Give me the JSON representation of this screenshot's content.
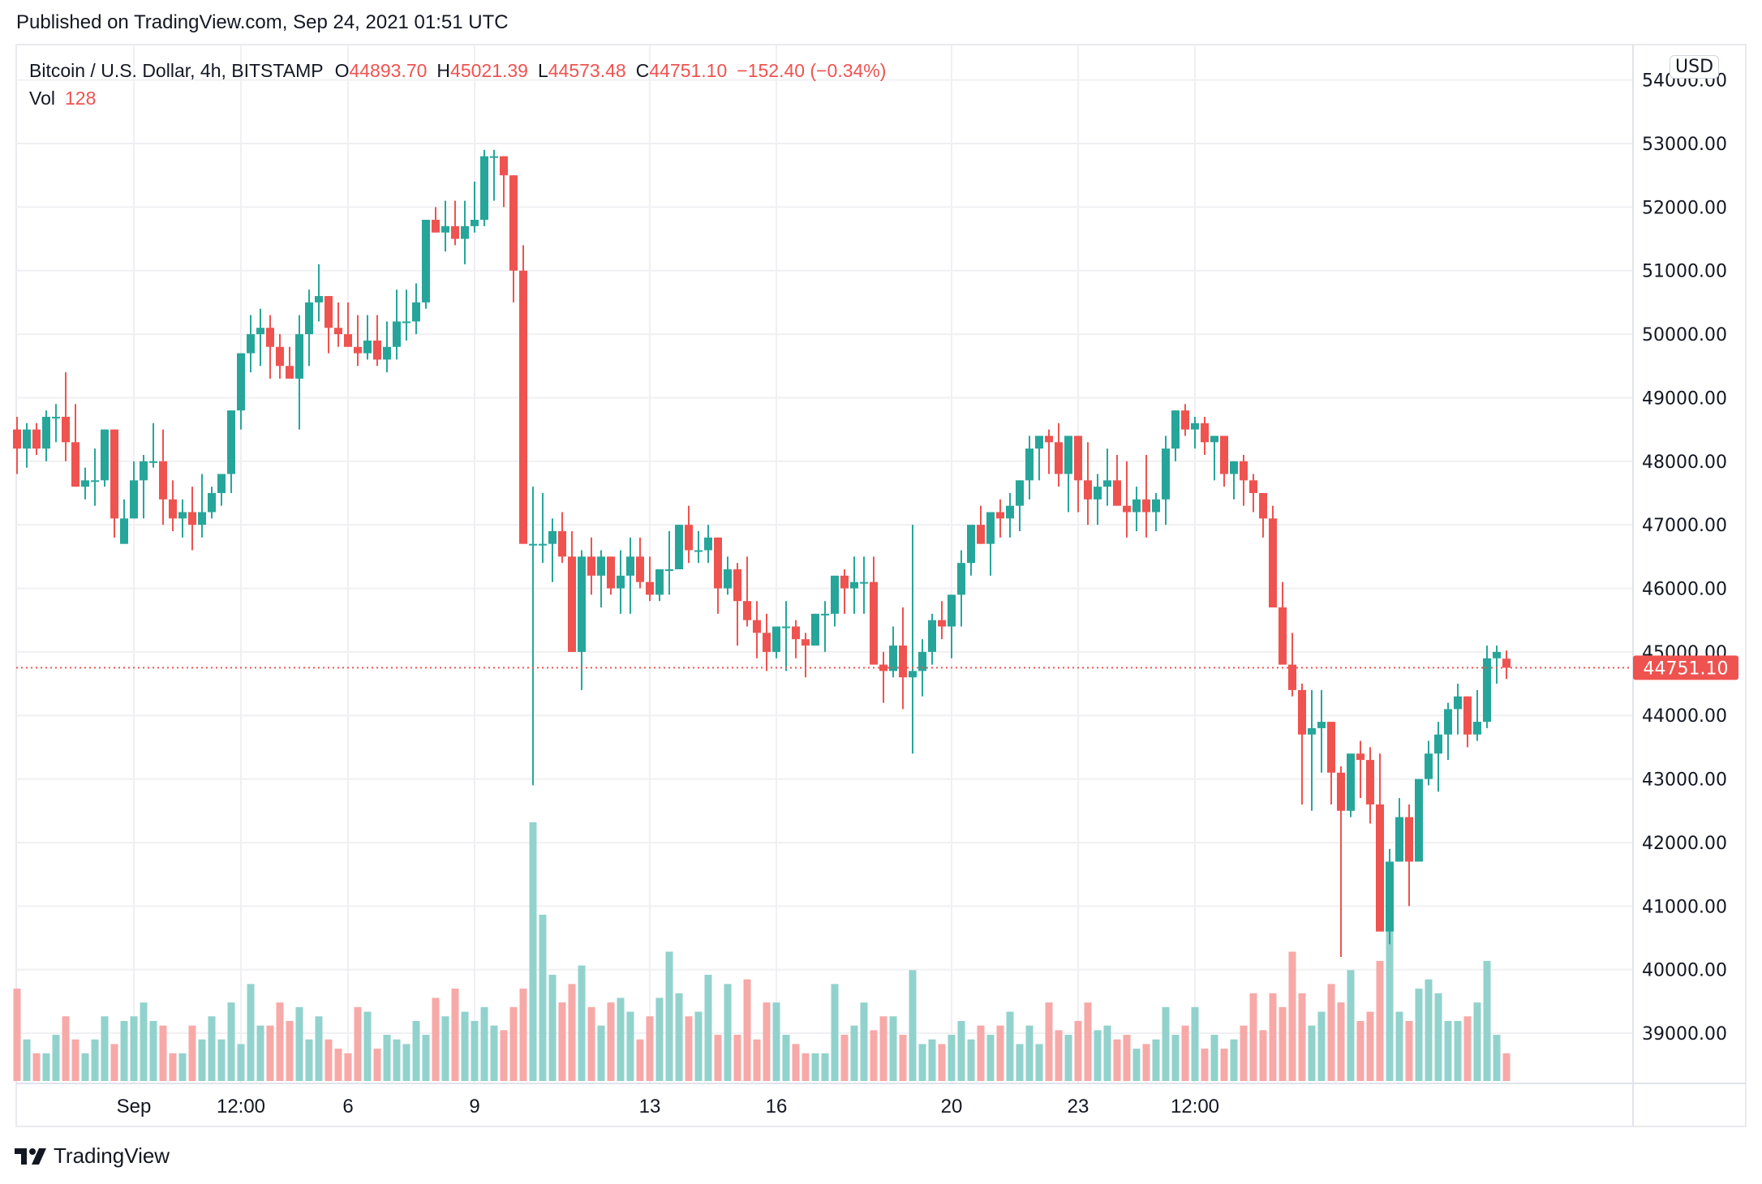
{
  "header": {
    "published": "Published on TradingView.com, Sep 24, 2021 01:51 UTC"
  },
  "legend": {
    "symbol": "Bitcoin / U.S. Dollar, 4h, BITSTAMP",
    "open_label": "O",
    "open": "44893.70",
    "high_label": "H",
    "high": "45021.39",
    "low_label": "L",
    "low": "44573.48",
    "close_label": "C",
    "close": "44751.10",
    "change": "−152.40 (−0.34%)",
    "vol_label": "Vol",
    "vol": "128"
  },
  "currency_badge": "USD",
  "last_price_label": "44751.10",
  "footer": {
    "brand": "TradingView"
  },
  "colors": {
    "up": "#26a69a",
    "down": "#ef5350",
    "up_vol": "#92d2cc",
    "down_vol": "#f7a9a7",
    "grid": "#f0f0f3"
  },
  "chart_data": {
    "type": "candlestick",
    "title": "Bitcoin / U.S. Dollar, 4h, BITSTAMP",
    "xlabel": "",
    "ylabel": "USD",
    "ylim": [
      38300,
      54300
    ],
    "y_ticks": [
      "54000.00",
      "53000.00",
      "52000.00",
      "51000.00",
      "50000.00",
      "49000.00",
      "48000.00",
      "47000.00",
      "46000.00",
      "45000.00",
      "44000.00",
      "43000.00",
      "42000.00",
      "41000.00",
      "40000.00",
      "39000.00"
    ],
    "x_ticks": [
      {
        "label": "Sep",
        "index": 12
      },
      {
        "label": "12:00",
        "index": 23
      },
      {
        "label": "6",
        "index": 34
      },
      {
        "label": "9",
        "index": 47
      },
      {
        "label": "13",
        "index": 65
      },
      {
        "label": "16",
        "index": 78
      },
      {
        "label": "20",
        "index": 96
      },
      {
        "label": "23",
        "index": 109
      },
      {
        "label": "12:00",
        "index": 121
      }
    ],
    "last_price": 44751.1,
    "grid": true,
    "candles_ohlcv": [
      [
        48500,
        48700,
        47800,
        48200,
        20
      ],
      [
        48200,
        48600,
        47900,
        48500,
        9
      ],
      [
        48500,
        48600,
        48100,
        48200,
        6
      ],
      [
        48200,
        48800,
        48000,
        48700,
        6
      ],
      [
        48700,
        48900,
        48300,
        48700,
        10
      ],
      [
        48700,
        49400,
        48000,
        48300,
        14
      ],
      [
        48300,
        48900,
        48000,
        47600,
        9
      ],
      [
        47600,
        47900,
        47400,
        47700,
        6
      ],
      [
        47700,
        48200,
        47300,
        47700,
        9
      ],
      [
        47700,
        48300,
        47600,
        48500,
        14
      ],
      [
        48500,
        48500,
        46800,
        47100,
        8
      ],
      [
        46700,
        47400,
        46800,
        47100,
        13
      ],
      [
        47100,
        48000,
        47200,
        47700,
        14
      ],
      [
        47700,
        48100,
        47100,
        48000,
        17
      ],
      [
        48000,
        48600,
        47900,
        48000,
        13
      ],
      [
        48000,
        48500,
        47000,
        47400,
        12
      ],
      [
        47400,
        47700,
        46900,
        47100,
        6
      ],
      [
        47100,
        47400,
        46800,
        47200,
        6
      ],
      [
        47200,
        47600,
        46600,
        47000,
        12
      ],
      [
        47000,
        47800,
        46800,
        47200,
        9
      ],
      [
        47200,
        47600,
        47100,
        47500,
        14
      ],
      [
        47500,
        47800,
        47300,
        47800,
        9
      ],
      [
        47800,
        48800,
        47500,
        48800,
        17
      ],
      [
        48800,
        49500,
        48500,
        49700,
        8
      ],
      [
        49700,
        50300,
        49400,
        50000,
        21
      ],
      [
        50000,
        50400,
        49500,
        50100,
        12
      ],
      [
        50100,
        50300,
        49300,
        49800,
        12
      ],
      [
        49800,
        50000,
        49300,
        49500,
        17
      ],
      [
        49500,
        49800,
        49300,
        49300,
        13
      ],
      [
        49300,
        50300,
        48500,
        50000,
        16
      ],
      [
        50000,
        50700,
        49500,
        50500,
        9
      ],
      [
        50500,
        51100,
        50200,
        50600,
        14
      ],
      [
        50600,
        50500,
        49700,
        50100,
        9
      ],
      [
        50100,
        50500,
        49800,
        50000,
        7
      ],
      [
        50000,
        50500,
        49800,
        49800,
        6
      ],
      [
        49800,
        50300,
        49500,
        49700,
        16
      ],
      [
        49700,
        50300,
        49600,
        49900,
        15
      ],
      [
        49900,
        50300,
        49500,
        49600,
        7
      ],
      [
        49600,
        50200,
        49400,
        49800,
        10
      ],
      [
        49800,
        50700,
        49600,
        50200,
        9
      ],
      [
        50200,
        50700,
        49900,
        50200,
        8
      ],
      [
        50200,
        50800,
        50000,
        50500,
        13
      ],
      [
        50500,
        51300,
        50400,
        51800,
        10
      ],
      [
        51800,
        52000,
        51600,
        51600,
        18
      ],
      [
        51600,
        52100,
        51300,
        51700,
        14
      ],
      [
        51700,
        52100,
        51400,
        51500,
        20
      ],
      [
        51500,
        52100,
        51100,
        51700,
        15
      ],
      [
        51700,
        52400,
        51600,
        51800,
        13
      ],
      [
        51800,
        52900,
        51700,
        52800,
        16
      ],
      [
        52800,
        52900,
        52100,
        52800,
        12
      ],
      [
        52800,
        52800,
        52000,
        52500,
        11
      ],
      [
        52500,
        52400,
        50500,
        51000,
        16
      ],
      [
        51000,
        51400,
        46800,
        46700,
        20
      ],
      [
        46700,
        47600,
        42900,
        46700,
        56
      ],
      [
        46700,
        47500,
        46400,
        46700,
        36
      ],
      [
        46700,
        47100,
        46100,
        46900,
        23
      ],
      [
        46900,
        47200,
        46400,
        46500,
        17
      ],
      [
        46500,
        46900,
        45200,
        45000,
        21
      ],
      [
        45000,
        46600,
        44400,
        46500,
        25
      ],
      [
        46500,
        46800,
        45900,
        46200,
        16
      ],
      [
        46200,
        46600,
        45700,
        46500,
        12
      ],
      [
        46500,
        46500,
        45900,
        46000,
        17
      ],
      [
        46000,
        46600,
        45600,
        46200,
        18
      ],
      [
        46200,
        46800,
        45600,
        46500,
        15
      ],
      [
        46500,
        46800,
        46000,
        46100,
        9
      ],
      [
        46100,
        46500,
        45800,
        45900,
        14
      ],
      [
        45900,
        46300,
        45800,
        46300,
        18
      ],
      [
        46300,
        46900,
        45900,
        46300,
        28
      ],
      [
        46300,
        46900,
        46600,
        47000,
        19
      ],
      [
        47000,
        47300,
        46400,
        46600,
        14
      ],
      [
        46600,
        46900,
        46400,
        46600,
        15
      ],
      [
        46600,
        47000,
        46400,
        46800,
        23
      ],
      [
        46800,
        46700,
        45600,
        46000,
        10
      ],
      [
        46000,
        46500,
        45900,
        46300,
        21
      ],
      [
        46300,
        46400,
        45100,
        45800,
        10
      ],
      [
        45800,
        46500,
        45400,
        45500,
        22
      ],
      [
        45500,
        45800,
        44900,
        45300,
        9
      ],
      [
        45300,
        45600,
        44700,
        45000,
        17
      ],
      [
        45000,
        45300,
        44900,
        45400,
        17
      ],
      [
        45400,
        45800,
        44700,
        45400,
        10
      ],
      [
        45400,
        45500,
        44900,
        45200,
        8
      ],
      [
        45200,
        45300,
        44600,
        45100,
        6
      ],
      [
        45100,
        45600,
        45300,
        45600,
        6
      ],
      [
        45600,
        45800,
        45000,
        45600,
        6
      ],
      [
        45600,
        46100,
        45400,
        46200,
        21
      ],
      [
        46200,
        46300,
        45600,
        46000,
        10
      ],
      [
        46000,
        46500,
        45600,
        46100,
        12
      ],
      [
        46100,
        46500,
        45600,
        46100,
        17
      ],
      [
        46100,
        46500,
        44900,
        44800,
        11
      ],
      [
        44800,
        45000,
        44200,
        44700,
        14
      ],
      [
        44700,
        45400,
        44600,
        45100,
        14
      ],
      [
        45100,
        45700,
        44100,
        44600,
        10
      ],
      [
        44600,
        47000,
        43400,
        44700,
        24
      ],
      [
        44700,
        45200,
        44300,
        45000,
        8
      ],
      [
        45000,
        45600,
        44800,
        45500,
        9
      ],
      [
        45500,
        45800,
        45200,
        45400,
        8
      ],
      [
        45400,
        45900,
        44900,
        45900,
        10
      ],
      [
        45900,
        46600,
        45400,
        46400,
        13
      ],
      [
        46400,
        46700,
        46200,
        47000,
        9
      ],
      [
        47000,
        47300,
        46700,
        46700,
        12
      ],
      [
        46700,
        47200,
        46200,
        47200,
        10
      ],
      [
        47200,
        47400,
        46800,
        47100,
        12
      ],
      [
        47100,
        47500,
        46800,
        47300,
        15
      ],
      [
        47300,
        47700,
        46900,
        47700,
        8
      ],
      [
        47700,
        48400,
        47400,
        48200,
        12
      ],
      [
        48200,
        48400,
        47700,
        48400,
        8
      ],
      [
        48400,
        48500,
        47800,
        48300,
        17
      ],
      [
        48300,
        48600,
        47600,
        47800,
        11
      ],
      [
        47800,
        48300,
        47200,
        48400,
        10
      ],
      [
        48400,
        48400,
        47200,
        47700,
        13
      ],
      [
        47700,
        48300,
        47000,
        47400,
        17
      ],
      [
        47400,
        47800,
        47000,
        47600,
        11
      ],
      [
        47600,
        48200,
        47300,
        47700,
        12
      ],
      [
        47700,
        48100,
        47300,
        47300,
        9
      ],
      [
        47300,
        48000,
        46800,
        47200,
        10
      ],
      [
        47200,
        47600,
        46900,
        47400,
        7
      ],
      [
        47400,
        48100,
        46800,
        47200,
        8
      ],
      [
        47200,
        47500,
        46900,
        47400,
        9
      ],
      [
        47400,
        48400,
        47000,
        48200,
        16
      ],
      [
        48200,
        48800,
        48000,
        48800,
        10
      ],
      [
        48800,
        48900,
        48400,
        48500,
        12
      ],
      [
        48500,
        48700,
        48200,
        48600,
        16
      ],
      [
        48600,
        48700,
        48100,
        48300,
        7
      ],
      [
        48300,
        48400,
        47700,
        48400,
        10
      ],
      [
        48400,
        48300,
        47600,
        47800,
        7
      ],
      [
        47800,
        48000,
        47400,
        48000,
        9
      ],
      [
        48000,
        48100,
        47300,
        47700,
        12
      ],
      [
        47700,
        47800,
        47200,
        47500,
        19
      ],
      [
        47500,
        47400,
        46800,
        47100,
        11
      ],
      [
        47100,
        47300,
        46100,
        45700,
        19
      ],
      [
        45700,
        46100,
        44900,
        44800,
        16
      ],
      [
        44800,
        45300,
        44300,
        44400,
        28
      ],
      [
        44400,
        44500,
        42600,
        43700,
        19
      ],
      [
        43700,
        44400,
        42500,
        43800,
        12
      ],
      [
        43800,
        44400,
        43100,
        43900,
        15
      ],
      [
        43900,
        43900,
        42600,
        43100,
        21
      ],
      [
        43100,
        43200,
        40200,
        42500,
        17
      ],
      [
        42500,
        43400,
        42400,
        43400,
        24
      ],
      [
        43400,
        43600,
        42700,
        43300,
        13
      ],
      [
        43300,
        43500,
        42300,
        42600,
        15
      ],
      [
        42600,
        43400,
        41300,
        40600,
        26
      ],
      [
        40600,
        41900,
        40400,
        41700,
        33
      ],
      [
        41700,
        42700,
        42000,
        42400,
        15
      ],
      [
        42400,
        42600,
        41000,
        41700,
        13
      ],
      [
        41700,
        43000,
        41900,
        43000,
        20
      ],
      [
        43000,
        43600,
        42900,
        43400,
        22
      ],
      [
        43400,
        43900,
        42800,
        43700,
        19
      ],
      [
        43700,
        44200,
        43300,
        44100,
        13
      ],
      [
        44100,
        44500,
        43700,
        44300,
        13
      ],
      [
        44300,
        44300,
        43500,
        43700,
        14
      ],
      [
        43700,
        44400,
        43600,
        43900,
        17
      ],
      [
        43900,
        45100,
        43800,
        44900,
        26
      ],
      [
        44900,
        45100,
        44500,
        45000,
        10
      ],
      [
        44893.7,
        45021.39,
        44573.48,
        44751.1,
        6
      ]
    ]
  }
}
